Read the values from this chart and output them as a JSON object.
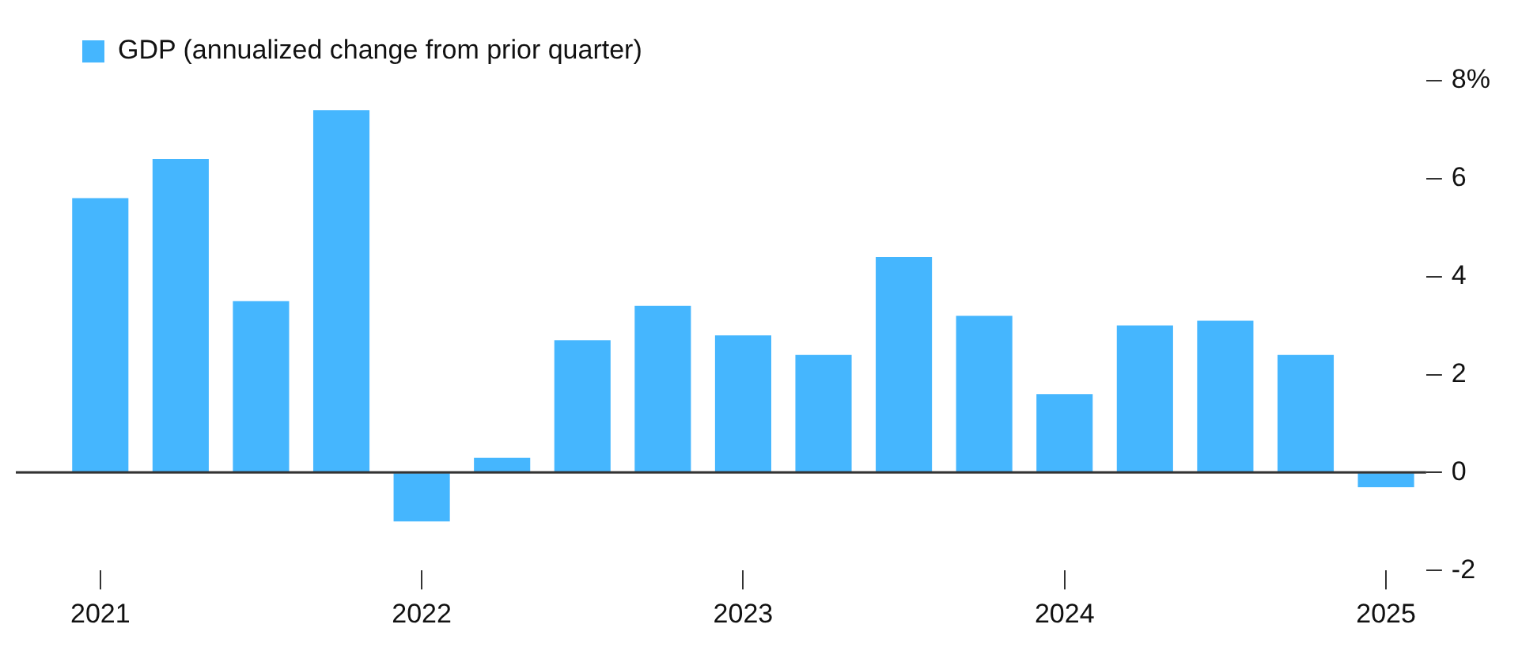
{
  "chart_data": {
    "type": "bar",
    "categories": [
      "2021",
      null,
      null,
      null,
      "2022",
      null,
      null,
      null,
      "2023",
      null,
      null,
      null,
      "2024",
      null,
      null,
      null,
      "2025"
    ],
    "series": [
      {
        "name": "GDP (annualized change from prior quarter)",
        "color": "#45b6fe",
        "values": [
          5.6,
          6.4,
          3.5,
          7.4,
          -1.0,
          0.3,
          2.7,
          3.4,
          2.8,
          2.4,
          4.4,
          3.2,
          1.6,
          3.0,
          3.1,
          2.4,
          -0.3
        ]
      }
    ],
    "ylim": [
      -2,
      8
    ],
    "yticks": [
      {
        "value": 8,
        "label": "8%"
      },
      6,
      4,
      2,
      0,
      -2
    ],
    "ref_lines": [
      {
        "axis": "y",
        "value": 0,
        "color": "#333333"
      }
    ],
    "legend": "top left",
    "grid": false
  }
}
